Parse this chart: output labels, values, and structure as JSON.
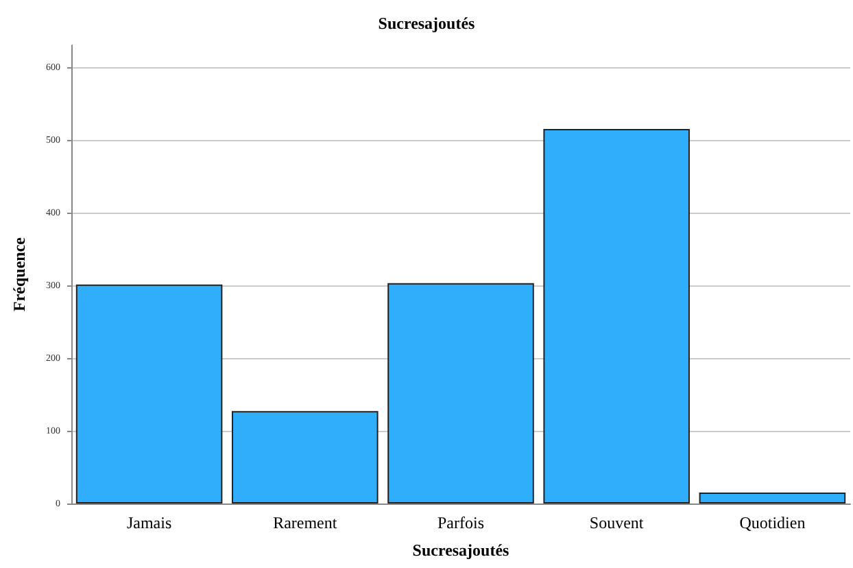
{
  "chart_data": {
    "type": "bar",
    "title": "Sucresajoutés",
    "xlabel": "Sucresajoutés",
    "ylabel": "Fréquence",
    "categories": [
      "Jamais",
      "Rarement",
      "Parfois",
      "Souvent",
      "Quotidien"
    ],
    "values": [
      301,
      127,
      303,
      515,
      15
    ],
    "color": "#30aefc",
    "ylim": [
      0,
      630
    ],
    "yticks": [
      0,
      100,
      200,
      300,
      400,
      500,
      600
    ],
    "grid": "y"
  }
}
